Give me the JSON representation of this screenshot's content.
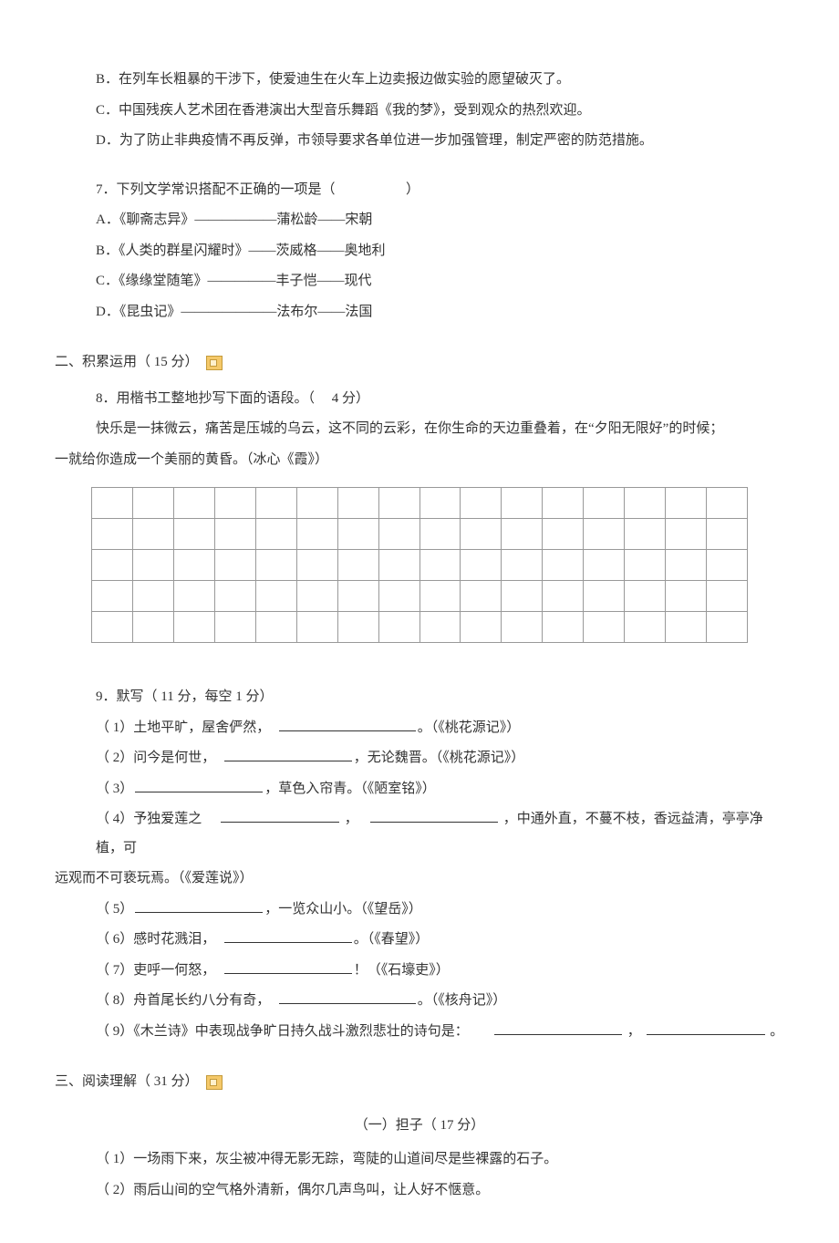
{
  "q6": {
    "options": {
      "B": "B．在列车长粗暴的干涉下，使爱迪生在火车上边卖报边做实验的愿望破灭了。",
      "C": "C．中国残疾人艺术团在香港演出大型音乐舞蹈《我的梦》，受到观众的热烈欢迎。",
      "D": "D．为了防止非典疫情不再反弹，市领导要求各单位进一步加强管理，制定严密的防范措施。"
    }
  },
  "q7": {
    "stem_pre": "7．下列文学常识搭配不正确的一项是（",
    "stem_post": "）",
    "options": {
      "A": "A．《聊斋志异》——————蒲松龄——宋朝",
      "B": "B．《人类的群星闪耀时》——茨威格——奥地利",
      "C": "C．《缘缘堂随笔》—————丰子恺——现代",
      "D": "D．《昆虫记》———————法布尔——法国"
    }
  },
  "section2": {
    "heading": "二、积累运用（ 15 分）"
  },
  "q8": {
    "stem": "8．用楷书工整地抄写下面的语段。（　 4 分）",
    "passage_line1": "快乐是一抹微云，痛苦是压城的乌云，这不同的云彩，在你生命的天边重叠着，在“夕阳无限好”的时候；",
    "passage_line2": "一就给你造成一个美丽的黄昏。（冰心《霞》）",
    "grid": {
      "rows": 5,
      "cols": 16
    }
  },
  "q9": {
    "stem": "9．默写（ 11 分，每空  1 分）",
    "items": [
      {
        "pre": "（ 1）土地平旷，屋舍俨然，　",
        "blank_w": 150,
        "post": "。（《桃花源记》）"
      },
      {
        "pre": "（ 2）问今是何世，　",
        "blank_w": 140,
        "post": "，无论魏晋。（《桃花源记》）"
      },
      {
        "pre": "（ 3）",
        "blank_w": 140,
        "post": "，草色入帘青。（《陋室铭》）"
      }
    ],
    "item4": {
      "pre": "（ 4）予独爱莲之　",
      "blank1_w": 130,
      "mid": "，　",
      "blank2_w": 140,
      "post1": "，中通外直，不蔓不枝，香远益清，亭亭净植，可",
      "line2": "远观而不可亵玩焉。（《爱莲说》）"
    },
    "items2": [
      {
        "pre": "（ 5）",
        "blank_w": 140,
        "post": "，一览众山小。（《望岳》）"
      },
      {
        "pre": "（ 6）感时花溅泪，　",
        "blank_w": 140,
        "post": "。（《春望》）"
      },
      {
        "pre": "（ 7）吏呼一何怒，　",
        "blank_w": 140,
        "post": "！（《石壕吏》）"
      },
      {
        "pre": "（ 8）舟首尾长约八分有奇，　",
        "blank_w": 150,
        "post": "。（《核舟记》）"
      }
    ],
    "item9": {
      "pre": "（ 9）《木兰诗》中表现战争旷日持久战斗激烈悲壮的诗句是：　　",
      "blank1_w": 140,
      "mid": "，",
      "blank2_w": 130,
      "post": "。"
    }
  },
  "section3": {
    "heading": "三、阅读理解（ 31 分）",
    "sub_title": "（一）担子（  17 分）",
    "p1": "（ 1）一场雨下来，灰尘被冲得无影无踪，弯陡的山道间尽是些裸露的石子。",
    "p2": "（ 2）雨后山间的空气格外清新，偶尔几声鸟叫，让人好不惬意。"
  }
}
